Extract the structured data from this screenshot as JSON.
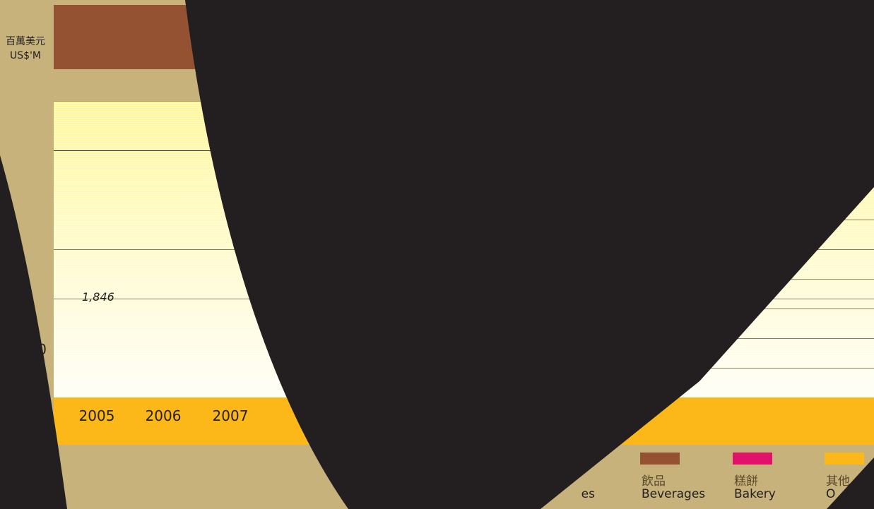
{
  "unit": {
    "cn": "百萬美元",
    "en": "US$'M"
  },
  "colors": {
    "beverages": "#955233",
    "bakery": "#e2126b",
    "others": "#fbb818",
    "background": "#c7b27c",
    "foreground_dark": "#231f20",
    "plot_top": "#fff79a",
    "plot_bottom": "#fffef6"
  },
  "legend": [
    {
      "cn": "飲品",
      "en": "Beverages",
      "color": "#955233"
    },
    {
      "cn": "糕餅",
      "en": "Bakery",
      "color": "#e2126b"
    },
    {
      "cn": "其他",
      "en": "O",
      "color": "#fbb818"
    }
  ],
  "legend_fragment": "es",
  "chart_data": {
    "type": "bar",
    "x": [
      "2005",
      "2006",
      "2007"
    ],
    "data_labels": [
      {
        "x": "2005",
        "text": "1,846"
      }
    ],
    "partial_tick_labels": [
      "00",
      "0"
    ],
    "ylabel": "百萬美元 US$'M",
    "legend": [
      "Beverages",
      "Bakery",
      "Others"
    ],
    "legend_placement": "bottom",
    "grid": true
  }
}
